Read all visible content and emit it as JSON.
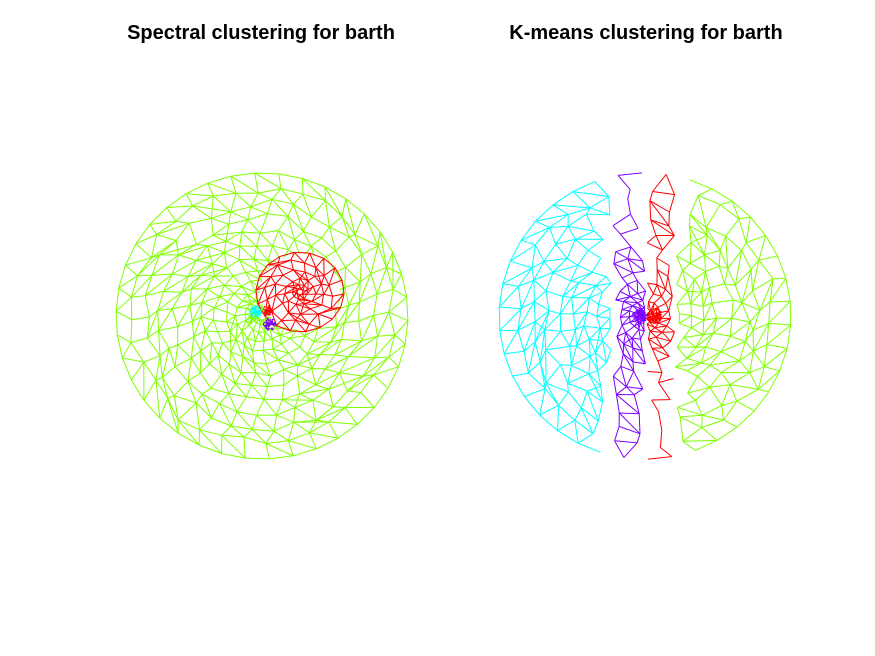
{
  "figure": {
    "left_title": "Spectral clustering for barth",
    "right_title": "K-means clustering for barth"
  },
  "colors": {
    "cluster_green": "#7fff00",
    "cluster_red": "#ff0000",
    "cluster_purple": "#7f00ff",
    "cluster_cyan": "#00ffff"
  }
}
